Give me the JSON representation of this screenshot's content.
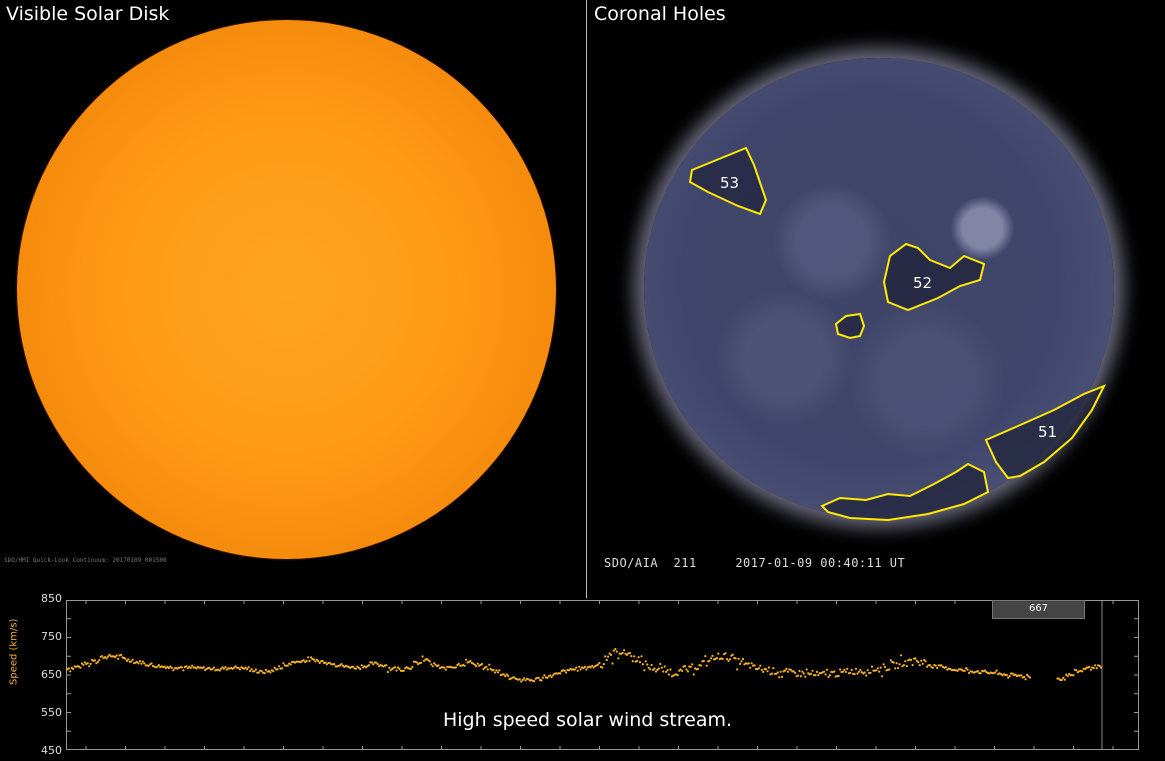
{
  "left_panel": {
    "title": "Visible Solar Disk",
    "source_caption": "SDO/HMI Quick-Look Continuum: 20170109_001500"
  },
  "right_panel": {
    "title": "Coronal Holes",
    "instrument_label": "SDO/AIA  211     2017-01-09 00:40:11 UT",
    "coronal_holes": [
      "53",
      "52",
      "51"
    ]
  },
  "wind_chart": {
    "current_speed": "667",
    "caption": "High speed solar wind stream."
  },
  "colors": {
    "hole_outline": "#ffea00",
    "data_points": "#f5b324",
    "visible_sun": "#ff9a14",
    "aia_sun": "#40466b"
  },
  "chart_data": {
    "type": "scatter",
    "ylabel": "Speed (km/s)",
    "yticks": [
      "850",
      "750",
      "650",
      "550",
      "450"
    ],
    "ylim": [
      450,
      850
    ],
    "grid": false,
    "series": [
      {
        "values": [
          668,
          672,
          680,
          690,
          698,
          700,
          695,
          690,
          684,
          678,
          674,
          672,
          671,
          670,
          669,
          668,
          667,
          666,
          668,
          670,
          668,
          663,
          658,
          660,
          668,
          678,
          685,
          688,
          690,
          686,
          682,
          676,
          672,
          670,
          674,
          680,
          676,
          668,
          665,
          670,
          682,
          690,
          675,
          668,
          672,
          678,
          684,
          676,
          668,
          660,
          650,
          642,
          638,
          636,
          640,
          646,
          652,
          660,
          665,
          668,
          672,
          680,
          700,
          712,
          708,
          694,
          680,
          670,
          664,
          660,
          658,
          664,
          672,
          682,
          694,
          700,
          696,
          686,
          676,
          668,
          664,
          660,
          658,
          656,
          654,
          652,
          650,
          652,
          654,
          656,
          660,
          662,
          664,
          666,
          670,
          676,
          682,
          690,
          684,
          678,
          672,
          668,
          664,
          662,
          660,
          658,
          656,
          652,
          650,
          648,
          646,
          null,
          null,
          null,
          640,
          650,
          660,
          668,
          672,
          670
        ]
      }
    ]
  }
}
